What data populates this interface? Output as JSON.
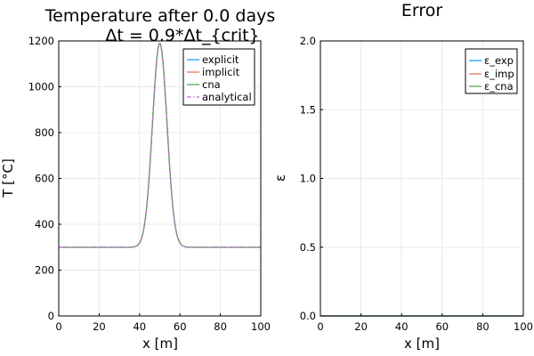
{
  "chart_data": [
    {
      "type": "line",
      "title_line1": "Temperature after 0.0 days",
      "title_line2": "Δt = 0.9*Δt_{crit}",
      "xlabel": "x [m]",
      "ylabel": "T [°C]",
      "xlim": [
        0,
        100
      ],
      "ylim": [
        0,
        1200
      ],
      "xticks": [
        0,
        20,
        40,
        60,
        80,
        100
      ],
      "yticks": [
        0,
        200,
        400,
        600,
        800,
        1000,
        1200
      ],
      "xtick_labels": [
        "0",
        "20",
        "40",
        "60",
        "80",
        "100"
      ],
      "ytick_labels": [
        "0",
        "200",
        "400",
        "600",
        "800",
        "1000",
        "1200"
      ],
      "grid": true,
      "legend_position": "top-right",
      "baseline": 300,
      "peak_center": 50,
      "peak_height": 890,
      "peak_sigma": 3.6,
      "series": [
        {
          "name": "explicit",
          "color": "#009AFA",
          "dash": "solid"
        },
        {
          "name": "implicit",
          "color": "#E26F46",
          "dash": "solid"
        },
        {
          "name": "cna",
          "color": "#3EA44E",
          "dash": "solid"
        },
        {
          "name": "analytical",
          "color": "#C271D2",
          "dash": "dashdot"
        }
      ]
    },
    {
      "type": "line",
      "title": "Error",
      "xlabel": "x [m]",
      "ylabel": "ε",
      "xlim": [
        0,
        100
      ],
      "ylim": [
        0,
        2
      ],
      "xticks": [
        0,
        20,
        40,
        60,
        80,
        100
      ],
      "yticks": [
        0,
        0.5,
        1,
        1.5,
        2
      ],
      "xtick_labels": [
        "0",
        "20",
        "40",
        "60",
        "80",
        "100"
      ],
      "ytick_labels": [
        "0.0",
        "0.5",
        "1.0",
        "1.5",
        "2.0"
      ],
      "grid": true,
      "legend_position": "top-right",
      "series": [
        {
          "name": "ε_exp",
          "color": "#009AFA",
          "dash": "solid",
          "x": [
            0,
            100
          ],
          "y": [
            0,
            0
          ]
        },
        {
          "name": "ε_imp",
          "color": "#E26F46",
          "dash": "solid",
          "x": [
            0,
            100
          ],
          "y": [
            0,
            0
          ]
        },
        {
          "name": "ε_cna",
          "color": "#3EA44E",
          "dash": "solid",
          "x": [
            0,
            100
          ],
          "y": [
            0,
            0
          ]
        }
      ]
    }
  ]
}
